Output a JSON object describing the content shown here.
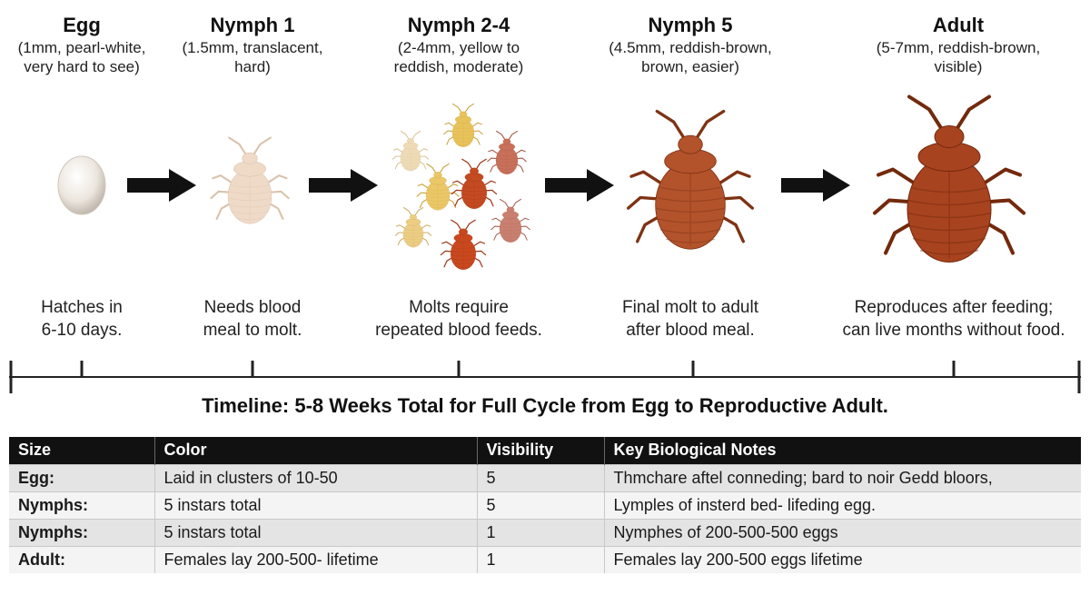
{
  "stages": [
    {
      "title": "Egg",
      "desc": [
        "(1mm, pearl-white,",
        "very hard to see)"
      ],
      "note": [
        "Hatches in",
        "6-10 days."
      ]
    },
    {
      "title": "Nymph 1",
      "desc": [
        "(1.5mm, translacent,",
        "hard)"
      ],
      "note": [
        "Needs blood",
        "meal to molt."
      ]
    },
    {
      "title": "Nymph 2-4",
      "desc": [
        "(2-4mm, yellow to",
        "reddish, moderate)"
      ],
      "note": [
        "Molts require",
        "repeated blood feeds."
      ]
    },
    {
      "title": "Nymph 5",
      "desc": [
        "(4.5mm, reddish-brown,",
        "brown, easier)"
      ],
      "note": [
        "Final molt to adult",
        "after blood meal."
      ]
    },
    {
      "title": "Adult",
      "desc": [
        "(5-7mm, reddish-brown,",
        "visible)"
      ],
      "note": [
        "Reproduces after feeding;",
        "can live months without food."
      ]
    }
  ],
  "colors": {
    "egg": "#f1ece6",
    "nymph1": "#ecd3bf",
    "yellow": "#e8c25a",
    "reddish": "#c44a22",
    "brown": "#a8431f",
    "arrow": "#111111",
    "table_header": "#111111"
  },
  "timeline": {
    "caption": "Timeline: 5-8 Weeks Total for Full Cycle from Egg to Reproductive Adult."
  },
  "table": {
    "headers": [
      "Size",
      "Color",
      "Visibility",
      "Key Biological Notes"
    ],
    "rows": [
      [
        "Egg:",
        "Laid in clusters of 10-50",
        "5",
        "Thmchare aftel conneding; bard to noir Gedd bloors,"
      ],
      [
        "Nymphs:",
        "5 instars total",
        "5",
        "Lymples of insterd bed- lifeding egg."
      ],
      [
        "Nymphs:",
        "5 instars total",
        "1",
        "Nymphes of 200-500-500 eggs"
      ],
      [
        "Adult:",
        "Females lay 200-500- lifetime",
        "1",
        "Females lay 200-500 eggs lifetime"
      ]
    ]
  }
}
